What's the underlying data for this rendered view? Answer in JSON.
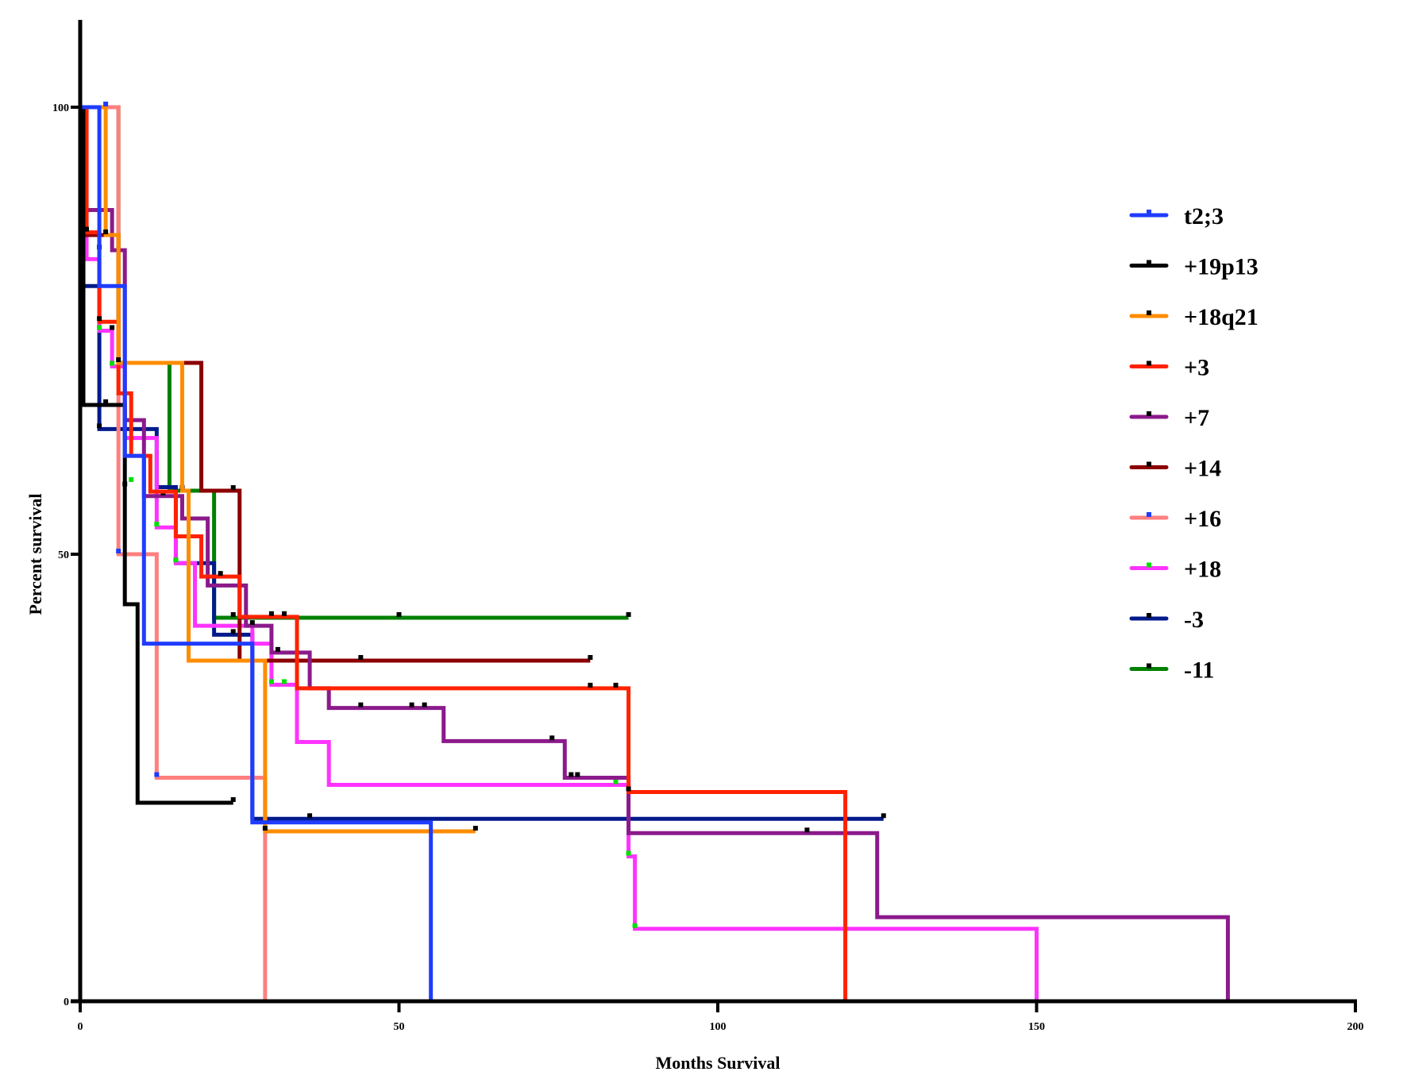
{
  "chart_data": {
    "type": "line",
    "subtype": "kaplan-meier-step",
    "title": "",
    "xlabel": "Months Survival",
    "ylabel": "Percent survival",
    "xlim": [
      0,
      200
    ],
    "ylim": [
      0,
      100
    ],
    "x_ticks": [
      0,
      50,
      100,
      150,
      200
    ],
    "y_ticks": [
      0,
      50,
      100
    ],
    "x_tick_labels": [
      "0",
      "50",
      "100",
      "150",
      "200"
    ],
    "y_tick_labels": [
      "0",
      "50",
      "100"
    ],
    "grid": false,
    "legend_position": "right",
    "series": [
      {
        "name": "t2;3",
        "color": "#1f3cff",
        "marker_color": "#1f3cff",
        "steps": [
          [
            0,
            100
          ],
          [
            3,
            80
          ],
          [
            7,
            61
          ],
          [
            10,
            40
          ],
          [
            27,
            20
          ],
          [
            55,
            0
          ]
        ],
        "censored": [
          [
            4,
            100
          ]
        ]
      },
      {
        "name": "+19p13",
        "color": "#000000",
        "marker_color": "#000000",
        "steps": [
          [
            0,
            100
          ],
          [
            0.5,
            66.7
          ],
          [
            7,
            44.4
          ],
          [
            9,
            22.2
          ]
        ],
        "end": 24,
        "censored": [
          [
            4,
            66.7
          ],
          [
            24,
            22.2
          ]
        ]
      },
      {
        "name": "+18q21",
        "color": "#ff8c00",
        "marker_color": "#000000",
        "steps": [
          [
            0,
            100
          ],
          [
            4,
            85.7
          ],
          [
            6,
            71.4
          ],
          [
            16,
            57.1
          ],
          [
            17,
            38.1
          ],
          [
            29,
            19
          ]
        ],
        "end": 62,
        "censored": [
          [
            4,
            85.7
          ],
          [
            6,
            71.4
          ],
          [
            29,
            19
          ],
          [
            62,
            19
          ]
        ]
      },
      {
        "name": "+3",
        "color": "#ff2200",
        "marker_color": "#000000",
        "steps": [
          [
            0,
            100
          ],
          [
            1,
            86
          ],
          [
            3,
            76
          ],
          [
            6,
            68
          ],
          [
            8,
            61
          ],
          [
            11,
            57
          ],
          [
            15,
            52
          ],
          [
            19,
            47.5
          ],
          [
            25,
            43
          ],
          [
            34,
            35
          ],
          [
            86,
            23.4
          ],
          [
            120,
            0
          ]
        ],
        "censored": [
          [
            1,
            86
          ],
          [
            3,
            76
          ],
          [
            22,
            47.5
          ],
          [
            30,
            43
          ],
          [
            32,
            43
          ],
          [
            80,
            35
          ],
          [
            84,
            35
          ],
          [
            86,
            23.4
          ]
        ]
      },
      {
        "name": "+7",
        "color": "#8b1a8b",
        "marker_color": "#000000",
        "steps": [
          [
            0,
            100
          ],
          [
            0.5,
            88.5
          ],
          [
            5,
            84
          ],
          [
            7,
            65
          ],
          [
            10,
            56.5
          ],
          [
            16,
            54
          ],
          [
            20,
            46.5
          ],
          [
            26,
            42
          ],
          [
            30,
            39
          ],
          [
            36,
            35
          ],
          [
            39,
            32.8
          ],
          [
            57,
            29.1
          ],
          [
            76,
            25
          ],
          [
            86,
            18.8
          ],
          [
            125,
            9.4
          ],
          [
            180,
            0
          ]
        ],
        "censored": [
          [
            3,
            84
          ],
          [
            5,
            75
          ],
          [
            13,
            56.5
          ],
          [
            27,
            42
          ],
          [
            31,
            39
          ],
          [
            44,
            32.8
          ],
          [
            52,
            32.8
          ],
          [
            54,
            32.8
          ],
          [
            74,
            29.1
          ],
          [
            77,
            25
          ],
          [
            78,
            25
          ],
          [
            114,
            18.8
          ]
        ]
      },
      {
        "name": "+14",
        "color": "#8b0000",
        "marker_color": "#000000",
        "steps": [
          [
            0,
            100
          ],
          [
            1,
            85.7
          ],
          [
            6,
            71.4
          ],
          [
            19,
            57.1
          ],
          [
            25,
            38.1
          ]
        ],
        "end": 80,
        "censored": [
          [
            1,
            85.7
          ],
          [
            16,
            57.1
          ],
          [
            24,
            57.1
          ],
          [
            44,
            38.1
          ],
          [
            80,
            38.1
          ]
        ]
      },
      {
        "name": "+16",
        "color": "#ff7f7f",
        "marker_color": "#1f3cff",
        "steps": [
          [
            0,
            100
          ],
          [
            6,
            50
          ],
          [
            12,
            25
          ],
          [
            29,
            0
          ]
        ],
        "censored": [
          [
            6,
            50
          ],
          [
            12,
            25
          ]
        ]
      },
      {
        "name": "+18",
        "color": "#ff33ff",
        "marker_color": "#00e000",
        "steps": [
          [
            0,
            100
          ],
          [
            1,
            83
          ],
          [
            3,
            75
          ],
          [
            5,
            71
          ],
          [
            7,
            63
          ],
          [
            12,
            53
          ],
          [
            15,
            49
          ],
          [
            18,
            42
          ],
          [
            27,
            40
          ],
          [
            30,
            35.4
          ],
          [
            34,
            29
          ],
          [
            39,
            24.2
          ],
          [
            86,
            16.2
          ],
          [
            87,
            8.1
          ],
          [
            150,
            0
          ]
        ],
        "censored": [
          [
            0.5,
            92
          ],
          [
            3,
            75
          ],
          [
            5,
            71
          ],
          [
            8,
            58
          ],
          [
            12,
            53
          ],
          [
            15,
            49
          ],
          [
            30,
            35.4
          ],
          [
            32,
            35.4
          ],
          [
            84,
            24.2
          ],
          [
            86,
            16.2
          ],
          [
            87,
            8.1
          ]
        ]
      },
      {
        "name": "-3",
        "color": "#001a8b",
        "marker_color": "#000000",
        "steps": [
          [
            0,
            100
          ],
          [
            0.5,
            80
          ],
          [
            3,
            64
          ],
          [
            12,
            57.5
          ],
          [
            15,
            49
          ],
          [
            21,
            41
          ],
          [
            27,
            20.4
          ]
        ],
        "end": 126,
        "censored": [
          [
            3,
            64
          ],
          [
            7,
            57.5
          ],
          [
            15,
            49
          ],
          [
            24,
            41
          ],
          [
            36,
            20.4
          ],
          [
            126,
            20.4
          ]
        ]
      },
      {
        "name": "-11",
        "color": "#008000",
        "marker_color": "#000000",
        "steps": [
          [
            0,
            100
          ],
          [
            6,
            71.4
          ],
          [
            14,
            57.1
          ],
          [
            21,
            42.9
          ]
        ],
        "end": 86,
        "censored": [
          [
            24,
            42.9
          ],
          [
            50,
            42.9
          ],
          [
            86,
            42.9
          ]
        ]
      }
    ]
  }
}
